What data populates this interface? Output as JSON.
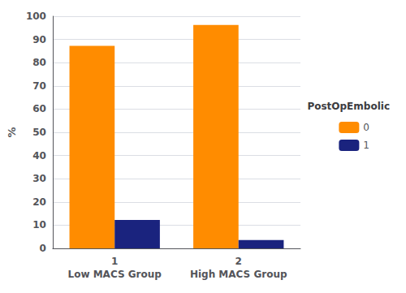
{
  "chart_data": {
    "type": "bar",
    "categories": [
      "1\nLow MACS Group",
      "2\nHigh MACS Group"
    ],
    "series": [
      {
        "name": "0",
        "color": "#FF8C00",
        "values": [
          87.2,
          96.2
        ]
      },
      {
        "name": "1",
        "color": "#1a237e",
        "values": [
          12.2,
          3.6
        ]
      }
    ],
    "ylabel": "%",
    "ylim": [
      0,
      100
    ],
    "yticks": [
      0,
      10,
      20,
      30,
      40,
      50,
      60,
      70,
      80,
      90,
      100
    ],
    "grid": true,
    "legend": "right",
    "legend_title": "PostOpEmbolic"
  }
}
